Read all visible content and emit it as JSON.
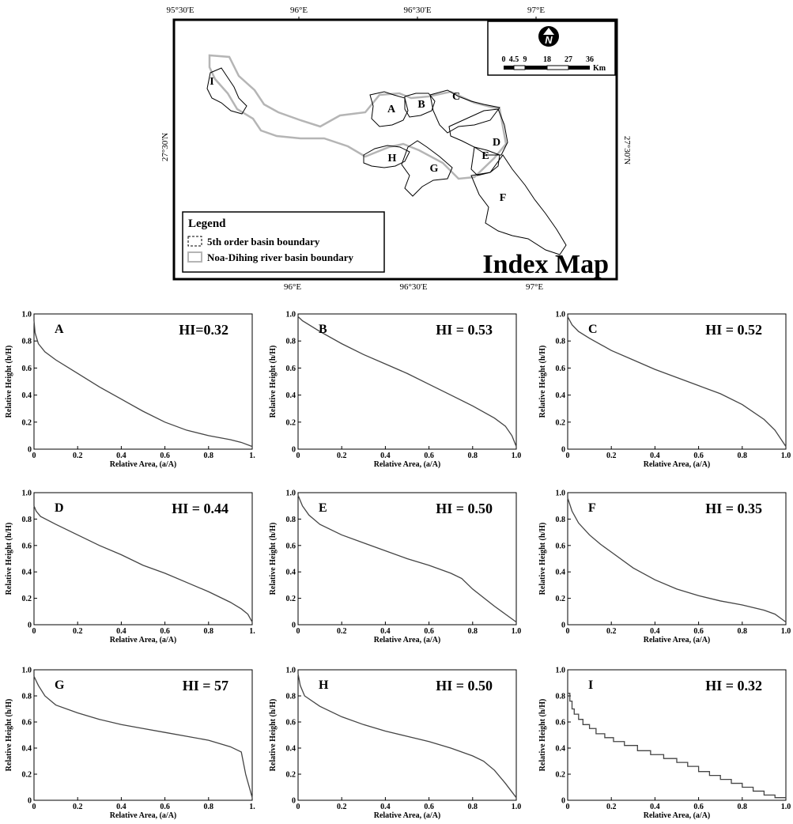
{
  "map": {
    "title": "Index Map",
    "legend": {
      "title": "Legend",
      "items": [
        "5th order basin boundary",
        "Noa-Dihing river basin boundary"
      ]
    },
    "top_coords": [
      "95°30'E",
      "96°E",
      "96°30'E",
      "97°E"
    ],
    "bottom_coords": [
      "96°E",
      "96°30'E",
      "97°E"
    ],
    "left_coord": "27°30'N",
    "right_coord": "27°30'N",
    "scale": {
      "labels": [
        "0",
        "4.5",
        "9",
        "18",
        "27",
        "36"
      ],
      "unit": "Km"
    },
    "north_label": "N",
    "basin_labels": [
      "I",
      "A",
      "B",
      "C",
      "D",
      "E",
      "F",
      "G",
      "H"
    ]
  },
  "chart_data": [
    {
      "type": "line",
      "panel": "A",
      "hi": "HI=0.32",
      "xlabel": "Relative Area, (a/A)",
      "ylabel": "Relative Height (h/H)",
      "xlim": [
        0,
        1
      ],
      "ylim": [
        0,
        1
      ],
      "x_ticks": [
        "0",
        "0.2",
        "0.4",
        "0.6",
        "0.8",
        "1."
      ],
      "y_ticks": [
        "0",
        "0.2",
        "0.4",
        "0.6",
        "0.8",
        "1.0"
      ],
      "x": [
        0,
        0.005,
        0.02,
        0.05,
        0.1,
        0.2,
        0.3,
        0.4,
        0.5,
        0.6,
        0.7,
        0.8,
        0.9,
        0.95,
        1.0
      ],
      "y": [
        0.95,
        0.86,
        0.78,
        0.72,
        0.66,
        0.56,
        0.46,
        0.37,
        0.28,
        0.2,
        0.14,
        0.1,
        0.07,
        0.05,
        0.02
      ]
    },
    {
      "type": "line",
      "panel": "B",
      "hi": "HI = 0.53",
      "xlabel": "Relative Area, (a/A)",
      "ylabel": "Relative Height (h/H)",
      "xlim": [
        0,
        1
      ],
      "ylim": [
        0,
        1
      ],
      "x_ticks": [
        "0",
        "0.2",
        "0.4",
        "0.6",
        "0.8",
        "1.0"
      ],
      "y_ticks": [
        "0",
        "0.2",
        "0.4",
        "0.6",
        "0.8",
        "1.0"
      ],
      "x": [
        0,
        0.02,
        0.1,
        0.2,
        0.3,
        0.4,
        0.5,
        0.6,
        0.7,
        0.8,
        0.9,
        0.95,
        0.98,
        1.0
      ],
      "y": [
        0.98,
        0.95,
        0.87,
        0.78,
        0.7,
        0.63,
        0.56,
        0.48,
        0.4,
        0.32,
        0.23,
        0.17,
        0.1,
        0.02
      ]
    },
    {
      "type": "line",
      "panel": "C",
      "hi": "HI = 0.52",
      "xlabel": "Relative Area, (a/A)",
      "ylabel": "Relative Height (h/H)",
      "xlim": [
        0,
        1
      ],
      "ylim": [
        0,
        1
      ],
      "x_ticks": [
        "0",
        "0.2",
        "0.4",
        "0.6",
        "0.8",
        "1.0"
      ],
      "y_ticks": [
        "0",
        "0.2",
        "0.4",
        "0.6",
        "0.8",
        "1.0"
      ],
      "x": [
        0,
        0.02,
        0.05,
        0.1,
        0.2,
        0.3,
        0.4,
        0.5,
        0.6,
        0.7,
        0.8,
        0.9,
        0.95,
        1.0
      ],
      "y": [
        0.98,
        0.92,
        0.87,
        0.82,
        0.73,
        0.66,
        0.59,
        0.53,
        0.47,
        0.41,
        0.33,
        0.22,
        0.14,
        0.02
      ]
    },
    {
      "type": "line",
      "panel": "D",
      "hi": "HI = 0.44",
      "xlabel": "Relative Area, (a/A)",
      "ylabel": "Relative Height (h/H)",
      "xlim": [
        0,
        1
      ],
      "ylim": [
        0,
        1
      ],
      "x_ticks": [
        "0",
        "0.2",
        "0.4",
        "0.6",
        "0.8",
        "1."
      ],
      "y_ticks": [
        "0",
        "0.2",
        "0.4",
        "0.6",
        "0.8",
        "1.0"
      ],
      "x": [
        0,
        0.01,
        0.03,
        0.1,
        0.2,
        0.3,
        0.4,
        0.5,
        0.6,
        0.7,
        0.8,
        0.9,
        0.95,
        0.98,
        1.0
      ],
      "y": [
        0.9,
        0.86,
        0.82,
        0.76,
        0.68,
        0.6,
        0.53,
        0.45,
        0.39,
        0.32,
        0.25,
        0.17,
        0.12,
        0.08,
        0.02
      ]
    },
    {
      "type": "line",
      "panel": "E",
      "hi": "HI = 0.50",
      "xlabel": "Relative Area, (a/A)",
      "ylabel": "Relative Height (h/H)",
      "xlim": [
        0,
        1
      ],
      "ylim": [
        0,
        1
      ],
      "x_ticks": [
        "0",
        "0.2",
        "0.4",
        "0.6",
        "0.8",
        "1.0"
      ],
      "y_ticks": [
        "0",
        "0.2",
        "0.4",
        "0.6",
        "0.8",
        "1.0"
      ],
      "x": [
        0,
        0.02,
        0.05,
        0.1,
        0.2,
        0.3,
        0.4,
        0.5,
        0.6,
        0.7,
        0.75,
        0.8,
        0.9,
        0.95,
        1.0
      ],
      "y": [
        0.98,
        0.9,
        0.83,
        0.76,
        0.68,
        0.62,
        0.56,
        0.5,
        0.45,
        0.39,
        0.35,
        0.27,
        0.14,
        0.08,
        0.02
      ]
    },
    {
      "type": "line",
      "panel": "F",
      "hi": "HI = 0.35",
      "xlabel": "Relative Area, (a/A)",
      "ylabel": "Relative Height (h/H)",
      "xlim": [
        0,
        1
      ],
      "ylim": [
        0,
        1
      ],
      "x_ticks": [
        "0",
        "0.2",
        "0.4",
        "0.6",
        "0.8",
        "1.0"
      ],
      "y_ticks": [
        "0",
        "0.2",
        "0.4",
        "0.6",
        "0.8",
        "1.0"
      ],
      "x": [
        0,
        0.02,
        0.05,
        0.1,
        0.15,
        0.2,
        0.3,
        0.4,
        0.5,
        0.6,
        0.7,
        0.8,
        0.9,
        0.95,
        1.0
      ],
      "y": [
        0.96,
        0.86,
        0.77,
        0.68,
        0.61,
        0.55,
        0.43,
        0.34,
        0.27,
        0.22,
        0.18,
        0.15,
        0.11,
        0.08,
        0.02
      ]
    },
    {
      "type": "line",
      "panel": "G",
      "hi": "HI = 57",
      "xlabel": "Relative Area, (a/A)",
      "ylabel": "Relative Height (h/H)",
      "xlim": [
        0,
        1
      ],
      "ylim": [
        0,
        1
      ],
      "x_ticks": [
        "0",
        "0.2",
        "0.4",
        "0.6",
        "0.8",
        "1."
      ],
      "y_ticks": [
        "0",
        "0.2",
        "0.4",
        "0.6",
        "0.8",
        "1.0"
      ],
      "x": [
        0,
        0.02,
        0.05,
        0.1,
        0.2,
        0.3,
        0.4,
        0.5,
        0.6,
        0.7,
        0.8,
        0.9,
        0.95,
        0.97,
        1.0
      ],
      "y": [
        0.95,
        0.88,
        0.8,
        0.73,
        0.67,
        0.62,
        0.58,
        0.55,
        0.52,
        0.49,
        0.46,
        0.41,
        0.37,
        0.2,
        0.02
      ]
    },
    {
      "type": "line",
      "panel": "H",
      "hi": "HI = 0.50",
      "xlabel": "Relative Area, (a/A)",
      "ylabel": "Relative Height (h/H)",
      "xlim": [
        0,
        1
      ],
      "ylim": [
        0,
        1
      ],
      "x_ticks": [
        "0",
        "0.2",
        "0.4",
        "0.6",
        "0.8",
        "1.0"
      ],
      "y_ticks": [
        "0",
        "0.2",
        "0.4",
        "0.6",
        "0.8",
        "1.0"
      ],
      "x": [
        0,
        0.01,
        0.03,
        0.1,
        0.2,
        0.3,
        0.4,
        0.5,
        0.6,
        0.7,
        0.8,
        0.85,
        0.9,
        0.95,
        1.0
      ],
      "y": [
        0.97,
        0.88,
        0.8,
        0.72,
        0.64,
        0.58,
        0.53,
        0.49,
        0.45,
        0.4,
        0.34,
        0.3,
        0.23,
        0.13,
        0.02
      ]
    },
    {
      "type": "line",
      "panel": "I",
      "hi": "HI = 0.32",
      "step": true,
      "xlabel": "Relative Area, (a/A)",
      "ylabel": "Relative Height (h/H)",
      "xlim": [
        0,
        1
      ],
      "ylim": [
        0,
        1
      ],
      "x_ticks": [
        "0",
        "0.2",
        "0.4",
        "0.6",
        "0.8",
        "1.0"
      ],
      "y_ticks": [
        "0",
        "0.2",
        "0.4",
        "0.6",
        "0.8",
        "1.0"
      ],
      "x": [
        0,
        0.01,
        0.02,
        0.03,
        0.05,
        0.07,
        0.1,
        0.13,
        0.17,
        0.21,
        0.26,
        0.32,
        0.38,
        0.44,
        0.5,
        0.55,
        0.6,
        0.65,
        0.7,
        0.75,
        0.8,
        0.85,
        0.9,
        0.95,
        1.0
      ],
      "y": [
        0.82,
        0.76,
        0.7,
        0.66,
        0.62,
        0.58,
        0.55,
        0.51,
        0.48,
        0.45,
        0.42,
        0.38,
        0.35,
        0.32,
        0.29,
        0.26,
        0.22,
        0.19,
        0.16,
        0.13,
        0.1,
        0.07,
        0.04,
        0.02,
        0.02
      ]
    }
  ]
}
